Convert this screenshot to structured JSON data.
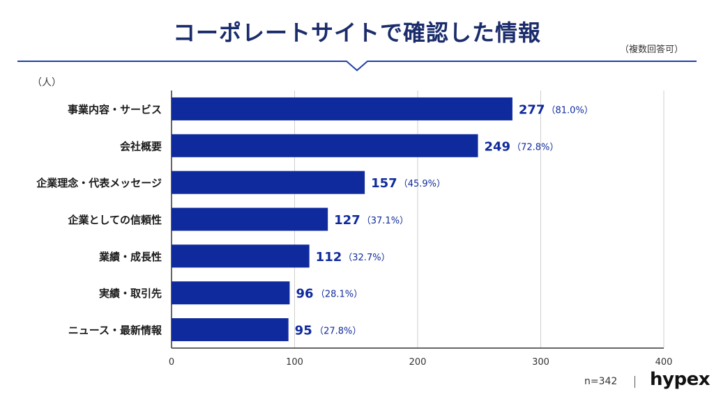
{
  "title": "コーポレートサイトで確認した情報",
  "note": "（複数回答可）",
  "unit_label": "（人）",
  "footer": {
    "n_label": "n=342",
    "logo": "hypex"
  },
  "colors": {
    "bar": "#0f2a9c",
    "title": "#1b2c6b",
    "accent_line": "#1f3fa6",
    "grid": "#cfcfcf"
  },
  "chart_data": {
    "type": "bar",
    "orientation": "horizontal",
    "title": "コーポレートサイトで確認した情報",
    "xlabel": "",
    "ylabel": "（人）",
    "xlim": [
      0,
      400
    ],
    "xticks": [
      0,
      100,
      200,
      300,
      400
    ],
    "grid": true,
    "categories": [
      "事業内容・サービス",
      "会社概要",
      "企業理念・代表メッセージ",
      "企業としての信頼性",
      "業績・成長性",
      "実績・取引先",
      "ニュース・最新情報"
    ],
    "values": [
      277,
      249,
      157,
      127,
      112,
      96,
      95
    ],
    "percent_labels": [
      "（81.0%）",
      "（72.8%）",
      "（45.9%）",
      "（37.1%）",
      "（32.7%）",
      "（28.1%）",
      "（27.8%）"
    ]
  }
}
